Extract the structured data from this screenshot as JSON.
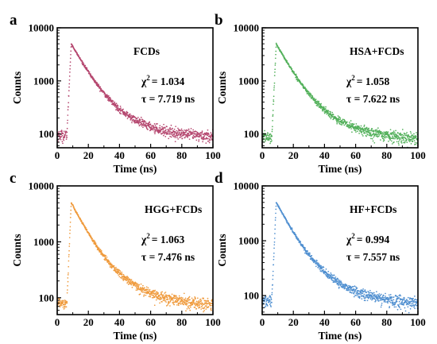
{
  "chart_data": [
    {
      "type": "scatter",
      "panel_label": "a",
      "legend": "FCDs",
      "chi_label": "χ",
      "chi_value": "= 1.034",
      "tau_text": "τ = 7.719 ns",
      "xlabel": "Time (ns)",
      "ylabel": "Counts",
      "xlim": [
        0,
        100
      ],
      "ylim": [
        55,
        10000
      ],
      "yscale": "log",
      "x_ticks": [
        "0",
        "20",
        "40",
        "60",
        "80",
        "100"
      ],
      "y_ticks": [
        "100",
        "1000",
        "10000"
      ],
      "color": "#b5476f",
      "decay": {
        "onset": 6.2,
        "peak_time": 9.0,
        "peak": 5000,
        "background": 85,
        "baseline": 95,
        "tau": 7.719,
        "tau_slow": 19
      }
    },
    {
      "type": "scatter",
      "panel_label": "b",
      "legend": "HSA+FCDs",
      "chi_label": "χ",
      "chi_value": "= 1.058",
      "tau_text": "τ = 7.622 ns",
      "xlabel": "Time (ns)",
      "ylabel": "Counts",
      "xlim": [
        0,
        100
      ],
      "ylim": [
        55,
        10000
      ],
      "yscale": "log",
      "x_ticks": [
        "0",
        "20",
        "40",
        "60",
        "80",
        "100"
      ],
      "y_ticks": [
        "100",
        "1000",
        "10000"
      ],
      "color": "#52b05a",
      "decay": {
        "onset": 6.2,
        "peak_time": 9.0,
        "peak": 5000,
        "background": 78,
        "baseline": 88,
        "tau": 7.622,
        "tau_slow": 19
      }
    },
    {
      "type": "scatter",
      "panel_label": "c",
      "legend": "HGG+FCDs",
      "chi_label": "χ",
      "chi_value": "= 1.063",
      "tau_text": "τ = 7.476 ns",
      "xlabel": "Time (ns)",
      "ylabel": "Counts",
      "xlim": [
        0,
        100
      ],
      "ylim": [
        50,
        10000
      ],
      "yscale": "log",
      "x_ticks": [
        "0",
        "20",
        "40",
        "60",
        "80",
        "100"
      ],
      "y_ticks": [
        "100",
        "1000",
        "10000"
      ],
      "color": "#ef9a3c",
      "decay": {
        "onset": 6.2,
        "peak_time": 9.0,
        "peak": 5000,
        "background": 70,
        "baseline": 82,
        "tau": 7.476,
        "tau_slow": 19
      }
    },
    {
      "type": "scatter",
      "panel_label": "d",
      "legend": "HF+FCDs",
      "chi_label": "χ",
      "chi_value": "= 0.994",
      "tau_text": "τ = 7.557 ns",
      "xlabel": "Time (ns)",
      "ylabel": "Counts",
      "xlim": [
        0,
        100
      ],
      "ylim": [
        45,
        10000
      ],
      "yscale": "log",
      "x_ticks": [
        "0",
        "20",
        "40",
        "60",
        "80",
        "100"
      ],
      "y_ticks": [
        "100",
        "1000",
        "10000"
      ],
      "color": "#4f8fd0",
      "decay": {
        "onset": 6.2,
        "peak_time": 9.0,
        "peak": 5000,
        "background": 68,
        "baseline": 80,
        "tau": 7.557,
        "tau_slow": 19
      }
    }
  ]
}
